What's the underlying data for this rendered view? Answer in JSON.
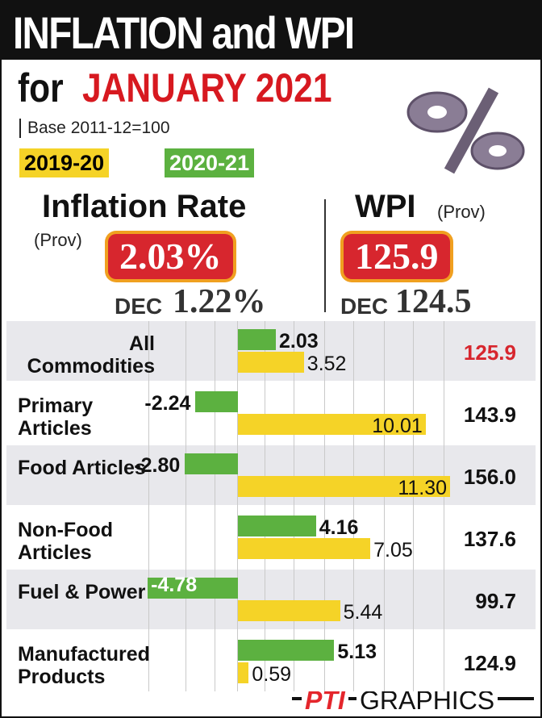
{
  "chart_data": {
    "type": "bar",
    "title": "INFLATION and WPI",
    "subtitle_prefix": "for",
    "subtitle": "JANUARY 2021",
    "base_note": "Base 2011-12=100",
    "inflation_heading": "Inflation Rate",
    "inflation_prov": "(Prov)",
    "inflation_value": "2.03%",
    "inflation_dec_label": "DEC",
    "inflation_dec_value": "1.22%",
    "wpi_heading": "WPI",
    "wpi_prov": "(Prov)",
    "wpi_value": "125.9",
    "wpi_dec_label": "DEC",
    "wpi_dec_value": "124.5",
    "categories": [
      "All Commodities",
      "Primary Articles",
      "Food Articles",
      "Non-Food Articles",
      "Fuel & Power",
      "Manufactured Products"
    ],
    "series": [
      {
        "name": "2020-21",
        "color": "#5cb140",
        "values": [
          2.03,
          -2.24,
          -2.8,
          4.16,
          -4.78,
          5.13
        ],
        "value_labels": [
          "2.03",
          "-2.24",
          "-2.80",
          "4.16",
          "-4.78",
          "5.13"
        ]
      },
      {
        "name": "2019-20",
        "color": "#f5d327",
        "values": [
          3.52,
          10.01,
          11.3,
          7.05,
          5.44,
          0.59
        ],
        "value_labels": [
          "3.52",
          "10.01",
          "11.30",
          "7.05",
          "5.44",
          "0.59"
        ]
      }
    ],
    "wpi_column": [
      "125.9",
      "143.9",
      "156.0",
      "137.6",
      "99.7",
      "124.9"
    ],
    "xlim": [
      -5,
      11.5
    ],
    "source_mark": "PTI",
    "source": "GRAPHICS"
  }
}
